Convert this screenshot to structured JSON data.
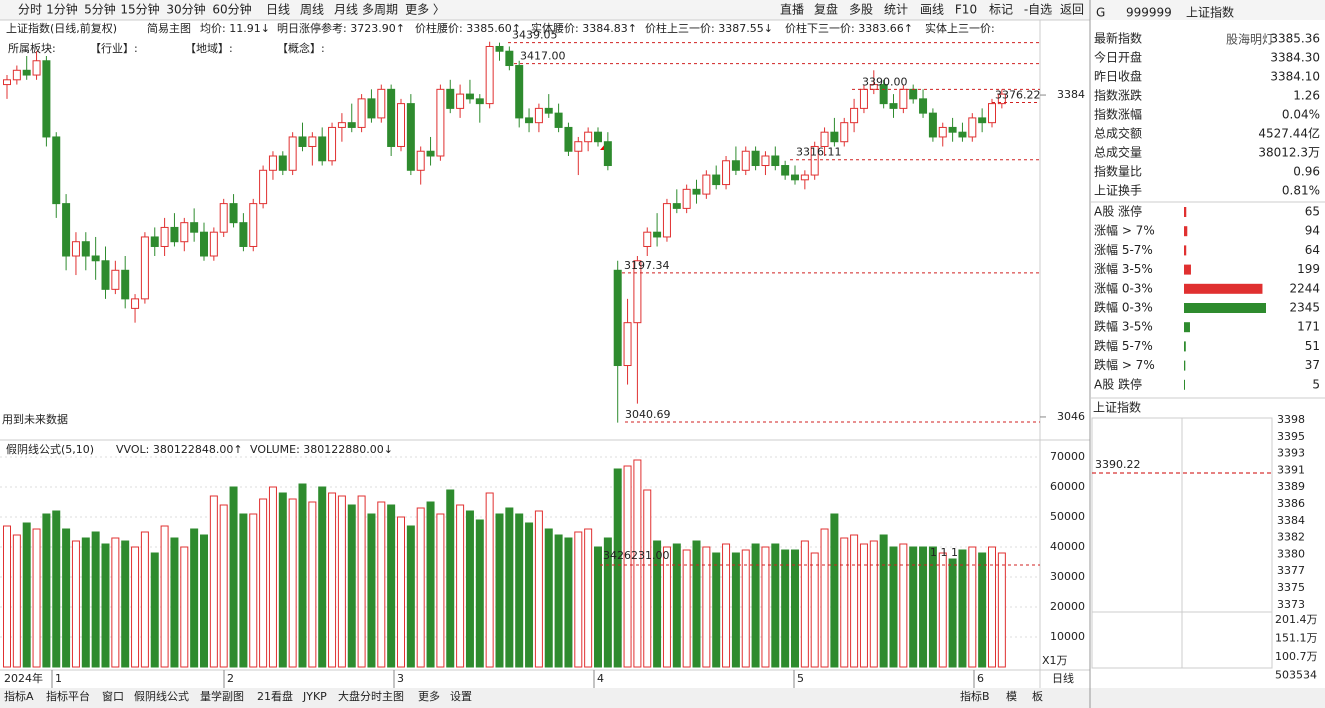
{
  "toolbar": {
    "periods": [
      "分时",
      "1分钟",
      "5分钟",
      "15分钟",
      "30分钟",
      "60分钟",
      "日线",
      "周线",
      "月线",
      "多周期",
      "更多 〉"
    ],
    "buttons": [
      "直播",
      "复盘",
      "多股",
      "统计",
      "画线",
      "F10",
      "标记",
      "-自选",
      "返回"
    ]
  },
  "info_bar": {
    "name": "上证指数(日线,前复权)",
    "main": "简易主图",
    "items": [
      "均价: 11.91↓",
      "明日涨停参考: 3723.90↑",
      "价柱腰价: 3385.60↑",
      "实体腰价: 3384.83↑",
      "价柱上三一价: 3387.55↓",
      "价柱下三一价: 3383.66↑",
      "实体上三一价:"
    ]
  },
  "sector_bar": [
    "所属板块:",
    "【行业】:",
    "【地域】:",
    "【概念】:"
  ],
  "chart_data": {
    "type": "candlestick",
    "up_color": "#e03030",
    "down_color": "#2e8b2e",
    "ylim": [
      3021.8,
      3441.8
    ],
    "yticks": [
      3384,
      3046
    ],
    "annotations": [
      "3439.05",
      "3417.00",
      "3390.00",
      "3376.22",
      "3316.11",
      "3197.34",
      "3040.69"
    ],
    "note": "用到未来数据",
    "ohlc": [
      [
        3395,
        3405,
        3380,
        3400
      ],
      [
        3400,
        3415,
        3395,
        3410
      ],
      [
        3410,
        3425,
        3400,
        3405
      ],
      [
        3405,
        3430,
        3400,
        3420
      ],
      [
        3420,
        3425,
        3330,
        3340
      ],
      [
        3340,
        3345,
        3255,
        3270
      ],
      [
        3270,
        3280,
        3200,
        3215
      ],
      [
        3215,
        3240,
        3195,
        3230
      ],
      [
        3230,
        3240,
        3200,
        3215
      ],
      [
        3215,
        3235,
        3190,
        3210
      ],
      [
        3210,
        3225,
        3170,
        3180
      ],
      [
        3180,
        3210,
        3175,
        3200
      ],
      [
        3200,
        3215,
        3160,
        3170
      ],
      [
        3160,
        3175,
        3145,
        3170
      ],
      [
        3170,
        3240,
        3165,
        3235
      ],
      [
        3235,
        3245,
        3215,
        3225
      ],
      [
        3225,
        3255,
        3215,
        3245
      ],
      [
        3245,
        3260,
        3225,
        3230
      ],
      [
        3230,
        3255,
        3220,
        3250
      ],
      [
        3250,
        3265,
        3230,
        3240
      ],
      [
        3240,
        3250,
        3210,
        3215
      ],
      [
        3215,
        3245,
        3210,
        3240
      ],
      [
        3240,
        3275,
        3235,
        3270
      ],
      [
        3270,
        3280,
        3245,
        3250
      ],
      [
        3250,
        3260,
        3220,
        3225
      ],
      [
        3225,
        3275,
        3220,
        3270
      ],
      [
        3270,
        3310,
        3265,
        3305
      ],
      [
        3305,
        3325,
        3295,
        3320
      ],
      [
        3320,
        3325,
        3300,
        3305
      ],
      [
        3305,
        3345,
        3300,
        3340
      ],
      [
        3340,
        3355,
        3325,
        3330
      ],
      [
        3330,
        3345,
        3310,
        3340
      ],
      [
        3340,
        3350,
        3310,
        3315
      ],
      [
        3315,
        3355,
        3310,
        3350
      ],
      [
        3350,
        3365,
        3335,
        3355
      ],
      [
        3355,
        3375,
        3345,
        3350
      ],
      [
        3350,
        3385,
        3345,
        3380
      ],
      [
        3380,
        3390,
        3355,
        3360
      ],
      [
        3360,
        3395,
        3355,
        3390
      ],
      [
        3390,
        3395,
        3320,
        3330
      ],
      [
        3330,
        3380,
        3325,
        3375
      ],
      [
        3375,
        3385,
        3300,
        3305
      ],
      [
        3305,
        3330,
        3290,
        3325
      ],
      [
        3325,
        3340,
        3310,
        3320
      ],
      [
        3320,
        3395,
        3315,
        3390
      ],
      [
        3390,
        3400,
        3365,
        3370
      ],
      [
        3370,
        3395,
        3360,
        3385
      ],
      [
        3385,
        3400,
        3375,
        3380
      ],
      [
        3380,
        3385,
        3355,
        3375
      ],
      [
        3375,
        3440,
        3370,
        3435
      ],
      [
        3435,
        3439,
        3420,
        3430
      ],
      [
        3430,
        3435,
        3410,
        3415
      ],
      [
        3415,
        3420,
        3350,
        3360
      ],
      [
        3360,
        3370,
        3345,
        3355
      ],
      [
        3355,
        3375,
        3345,
        3370
      ],
      [
        3370,
        3385,
        3360,
        3365
      ],
      [
        3365,
        3375,
        3345,
        3350
      ],
      [
        3350,
        3355,
        3320,
        3325
      ],
      [
        3325,
        3340,
        3300,
        3335
      ],
      [
        3335,
        3350,
        3325,
        3345
      ],
      [
        3345,
        3350,
        3330,
        3335
      ],
      [
        3335,
        3345,
        3305,
        3310
      ],
      [
        3200,
        3210,
        3040,
        3100
      ],
      [
        3100,
        3170,
        3080,
        3145
      ],
      [
        3145,
        3215,
        3060,
        3210
      ],
      [
        3225,
        3245,
        3215,
        3240
      ],
      [
        3240,
        3260,
        3225,
        3235
      ],
      [
        3235,
        3275,
        3230,
        3270
      ],
      [
        3270,
        3285,
        3260,
        3265
      ],
      [
        3265,
        3290,
        3260,
        3285
      ],
      [
        3285,
        3295,
        3270,
        3280
      ],
      [
        3280,
        3305,
        3275,
        3300
      ],
      [
        3300,
        3310,
        3285,
        3290
      ],
      [
        3290,
        3320,
        3285,
        3315
      ],
      [
        3315,
        3330,
        3300,
        3305
      ],
      [
        3305,
        3330,
        3300,
        3325
      ],
      [
        3325,
        3330,
        3305,
        3310
      ],
      [
        3310,
        3325,
        3300,
        3320
      ],
      [
        3320,
        3330,
        3305,
        3310
      ],
      [
        3310,
        3315,
        3295,
        3300
      ],
      [
        3300,
        3310,
        3290,
        3295
      ],
      [
        3295,
        3305,
        3285,
        3300
      ],
      [
        3300,
        3335,
        3295,
        3330
      ],
      [
        3330,
        3350,
        3320,
        3345
      ],
      [
        3345,
        3360,
        3330,
        3335
      ],
      [
        3335,
        3360,
        3330,
        3355
      ],
      [
        3355,
        3380,
        3345,
        3370
      ],
      [
        3370,
        3395,
        3365,
        3390
      ],
      [
        3390,
        3410,
        3385,
        3395
      ],
      [
        3395,
        3400,
        3370,
        3375
      ],
      [
        3375,
        3385,
        3360,
        3370
      ],
      [
        3370,
        3395,
        3365,
        3390
      ],
      [
        3390,
        3395,
        3375,
        3380
      ],
      [
        3380,
        3390,
        3360,
        3365
      ],
      [
        3365,
        3370,
        3335,
        3340
      ],
      [
        3340,
        3355,
        3330,
        3350
      ],
      [
        3350,
        3360,
        3335,
        3345
      ],
      [
        3345,
        3355,
        3335,
        3340
      ],
      [
        3340,
        3365,
        3335,
        3360
      ],
      [
        3360,
        3370,
        3345,
        3355
      ],
      [
        3355,
        3380,
        3350,
        3375
      ],
      [
        3375,
        3390,
        3370,
        3385
      ]
    ]
  },
  "volume": {
    "title": "假阴线公式(5,10)",
    "vvol": "VVOL: 380122848.00↑",
    "volume": "VOLUME: 380122880.00↓",
    "ma_label": "3426231.00",
    "signal_label": "1 1 1",
    "unit": "X1万",
    "ylim": [
      0,
      75000
    ],
    "yticks": [
      70000,
      60000,
      50000,
      40000,
      30000,
      20000,
      10000
    ],
    "values": [
      47000,
      44000,
      48000,
      46000,
      51000,
      52000,
      46000,
      42000,
      43000,
      45000,
      41000,
      43000,
      42000,
      40000,
      45000,
      38000,
      47000,
      43000,
      40000,
      46000,
      44000,
      57000,
      54000,
      60000,
      51000,
      51000,
      56000,
      60000,
      58000,
      56000,
      61000,
      55000,
      60000,
      58000,
      57000,
      54000,
      57000,
      51000,
      55000,
      54000,
      50000,
      47000,
      53000,
      55000,
      51000,
      59000,
      54000,
      52000,
      49000,
      58000,
      51000,
      53000,
      51000,
      48000,
      52000,
      46000,
      44000,
      43000,
      45000,
      46000,
      40000,
      43000,
      66000,
      67000,
      69000,
      59000,
      42000,
      40000,
      41000,
      39000,
      42000,
      40000,
      38000,
      41000,
      38000,
      39000,
      41000,
      40000,
      41000,
      39000,
      39000,
      42000,
      38000,
      46000,
      51000,
      43000,
      44000,
      41000,
      42000,
      44000,
      40000,
      41000,
      40000,
      40000,
      40000,
      38000,
      36000,
      39000,
      40000,
      38000,
      40000,
      38000
    ]
  },
  "date_axis": {
    "year": "2024年",
    "months": [
      "1",
      "2",
      "3",
      "4",
      "5",
      "6"
    ],
    "period": "日线"
  },
  "bottom_tabs": [
    "指标A",
    "指标平台",
    "窗口",
    "假阴线公式",
    "量学副图",
    "21看盘",
    "JYKP",
    "大盘分时主图",
    "更多",
    "设置"
  ],
  "bottom_right": [
    "指标B",
    "模",
    "板"
  ],
  "quote": {
    "flag": "G",
    "code": "999999",
    "name": "上证指数",
    "watermark": "股海明灯",
    "rows": [
      {
        "label": "最新指数",
        "value": "3385.36"
      },
      {
        "label": "今日开盘",
        "value": "3384.30"
      },
      {
        "label": "昨日收盘",
        "value": "3384.10"
      },
      {
        "label": "指数涨跌",
        "value": "1.26"
      },
      {
        "label": "指数涨幅",
        "value": "0.04%"
      },
      {
        "label": "总成交额",
        "value": "4527.44亿"
      },
      {
        "label": "总成交量",
        "value": "38012.3万"
      },
      {
        "label": "指数量比",
        "value": "0.96"
      },
      {
        "label": "上证换手",
        "value": "0.81%"
      }
    ],
    "row_colors": [
      "#e03030",
      "#e03030",
      "#222",
      "#e03030",
      "#e03030",
      "#222",
      "#222",
      "#2e8b2e",
      "#222"
    ]
  },
  "breadth": {
    "type": "bar",
    "categories": [
      "A股 涨停",
      "涨幅 > 7%",
      "涨幅 5-7%",
      "涨幅 3-5%",
      "涨幅 0-3%",
      "跌幅 0-3%",
      "跌幅 3-5%",
      "跌幅 5-7%",
      "跌幅 > 7%",
      "A股 跌停"
    ],
    "values": [
      65,
      94,
      64,
      199,
      2244,
      2345,
      171,
      51,
      37,
      5
    ],
    "colors": [
      "#e03030",
      "#e03030",
      "#e03030",
      "#e03030",
      "#e03030",
      "#2e8b2e",
      "#2e8b2e",
      "#2e8b2e",
      "#2e8b2e",
      "#2e8b2e"
    ]
  },
  "mini": {
    "title": "上证指数",
    "price_ticks": [
      "3398",
      "3395",
      "3393",
      "3391",
      "3389",
      "3386",
      "3384",
      "3382",
      "3380",
      "3377",
      "3375",
      "3373"
    ],
    "high_label": "3390.22",
    "vol_ticks": [
      "201.4万",
      "151.1万",
      "100.7万",
      "503534"
    ]
  }
}
